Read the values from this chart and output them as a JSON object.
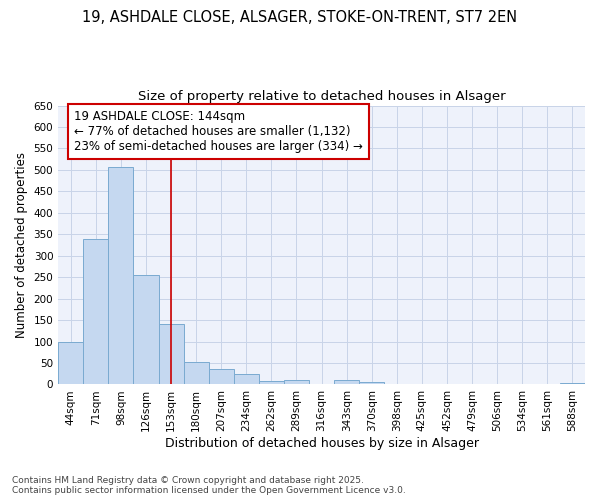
{
  "title": "19, ASHDALE CLOSE, ALSAGER, STOKE-ON-TRENT, ST7 2EN",
  "subtitle": "Size of property relative to detached houses in Alsager",
  "xlabel": "Distribution of detached houses by size in Alsager",
  "ylabel": "Number of detached properties",
  "categories": [
    "44sqm",
    "71sqm",
    "98sqm",
    "126sqm",
    "153sqm",
    "180sqm",
    "207sqm",
    "234sqm",
    "262sqm",
    "289sqm",
    "316sqm",
    "343sqm",
    "370sqm",
    "398sqm",
    "425sqm",
    "452sqm",
    "479sqm",
    "506sqm",
    "534sqm",
    "561sqm",
    "588sqm"
  ],
  "values": [
    100,
    340,
    507,
    255,
    140,
    53,
    37,
    25,
    8,
    10,
    0,
    10,
    6,
    0,
    0,
    0,
    0,
    0,
    0,
    0,
    4
  ],
  "bar_color": "#c5d8f0",
  "bar_edge_color": "#7aaad0",
  "bar_edge_width": 0.7,
  "vline_x": 4.0,
  "vline_color": "#cc0000",
  "vline_linewidth": 1.2,
  "annotation_text": "19 ASHDALE CLOSE: 144sqm\n← 77% of detached houses are smaller (1,132)\n23% of semi-detached houses are larger (334) →",
  "annotation_box_color": "#ffffff",
  "annotation_box_edge_color": "#cc0000",
  "ylim": [
    0,
    650
  ],
  "yticks": [
    0,
    50,
    100,
    150,
    200,
    250,
    300,
    350,
    400,
    450,
    500,
    550,
    600,
    650
  ],
  "grid_color": "#c8d4e8",
  "background_color": "#eef2fb",
  "footer_text": "Contains HM Land Registry data © Crown copyright and database right 2025.\nContains public sector information licensed under the Open Government Licence v3.0.",
  "title_fontsize": 10.5,
  "subtitle_fontsize": 9.5,
  "xlabel_fontsize": 9,
  "ylabel_fontsize": 8.5,
  "tick_fontsize": 7.5,
  "annotation_fontsize": 8.5,
  "footer_fontsize": 6.5
}
